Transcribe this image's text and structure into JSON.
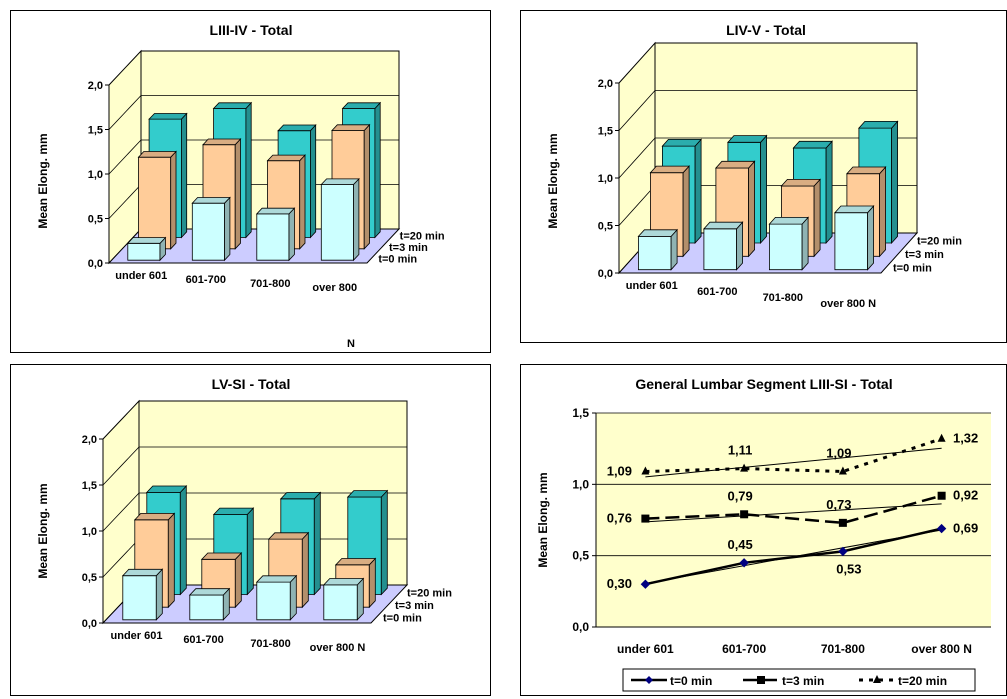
{
  "chart_data": [
    {
      "type": "bar",
      "title": "LIII-IV - Total",
      "ylabel": "Mean Elong. mm",
      "xlabel": "N",
      "categories": [
        "under 601",
        "601-700",
        "701-800",
        "over 800"
      ],
      "ylim": [
        0,
        2
      ],
      "yticks": [
        "0,0",
        "0,5",
        "1,0",
        "1,5",
        "2,0"
      ],
      "series": [
        {
          "name": "t=0 min",
          "values": [
            0.19,
            0.64,
            0.52,
            0.85
          ]
        },
        {
          "name": "t=3 min",
          "values": [
            1.03,
            1.17,
            0.99,
            1.33
          ]
        },
        {
          "name": "t=20 min",
          "values": [
            1.33,
            1.45,
            1.2,
            1.45
          ]
        }
      ],
      "colors": [
        "#ccffff",
        "#ffcc99",
        "#33cccc"
      ]
    },
    {
      "type": "bar",
      "title": "LIV-V - Total",
      "ylabel": "Mean Elong. mm",
      "xlabel": "",
      "categories": [
        "under 601",
        "601-700",
        "701-800",
        "over 800 N"
      ],
      "ylim": [
        0,
        2
      ],
      "yticks": [
        "0,0",
        "0,5",
        "1,0",
        "1,5",
        "2,0"
      ],
      "series": [
        {
          "name": "t=0 min",
          "values": [
            0.35,
            0.43,
            0.48,
            0.6
          ]
        },
        {
          "name": "t=3 min",
          "values": [
            0.88,
            0.93,
            0.74,
            0.87
          ]
        },
        {
          "name": "t=20 min",
          "values": [
            1.02,
            1.06,
            1.0,
            1.21
          ]
        }
      ],
      "colors": [
        "#ccffff",
        "#ffcc99",
        "#33cccc"
      ]
    },
    {
      "type": "bar",
      "title": "LV-SI - Total",
      "ylabel": "Mean Elong. mm",
      "xlabel": "",
      "categories": [
        "under 601",
        "601-700",
        "701-800",
        "over 800 N"
      ],
      "ylim": [
        0,
        2
      ],
      "yticks": [
        "0,0",
        "0,5",
        "1,0",
        "1,5",
        "2,0"
      ],
      "series": [
        {
          "name": "t=0 min",
          "values": [
            0.48,
            0.27,
            0.41,
            0.38
          ]
        },
        {
          "name": "t=3 min",
          "values": [
            0.95,
            0.52,
            0.74,
            0.46
          ]
        },
        {
          "name": "t=20 min",
          "values": [
            1.11,
            0.87,
            1.04,
            1.06
          ]
        }
      ],
      "colors": [
        "#ccffff",
        "#ffcc99",
        "#33cccc"
      ]
    },
    {
      "type": "line",
      "title": "General Lumbar Segment LIII-SI - Total",
      "ylabel": "Mean Elong. mm",
      "xlabel": "",
      "categories": [
        "under 601",
        "601-700",
        "701-800",
        "over 800 N"
      ],
      "ylim": [
        0,
        1.5
      ],
      "yticks": [
        "0,0",
        "0,5",
        "1,0",
        "1,5"
      ],
      "series": [
        {
          "name": "t=0 min",
          "values": [
            0.3,
            0.45,
            0.53,
            0.69
          ],
          "labels": [
            "0,30",
            "0,45",
            "0,53",
            "0,69"
          ]
        },
        {
          "name": "t=3 min",
          "values": [
            0.76,
            0.79,
            0.73,
            0.92
          ],
          "labels": [
            "0,76",
            "0,79",
            "0,73",
            "0,92"
          ]
        },
        {
          "name": "t=20 min",
          "values": [
            1.09,
            1.11,
            1.09,
            1.32
          ],
          "labels": [
            "1,09",
            "1,11",
            "1,09",
            "1,32"
          ]
        }
      ],
      "trendlines": true,
      "legend_position": "bottom",
      "grid": true
    }
  ]
}
